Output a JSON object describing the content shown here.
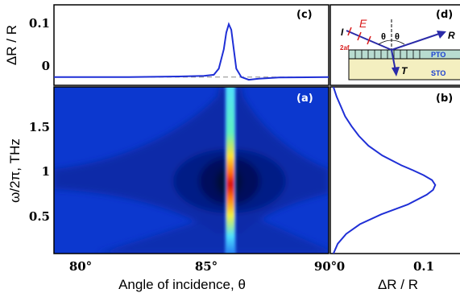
{
  "chart_data": [
    {
      "panel": "(c)",
      "type": "line",
      "ylabel": "ΔR / R",
      "yticks": [
        "0",
        "0.1"
      ],
      "ylim": [
        -0.015,
        0.13
      ],
      "xlim": [
        79,
        90
      ],
      "x": [
        79,
        82,
        84,
        85,
        85.4,
        85.6,
        85.8,
        85.9,
        86.0,
        86.1,
        86.2,
        86.3,
        86.5,
        86.8,
        87.2,
        88,
        90
      ],
      "y": [
        0,
        0,
        0.001,
        0.002,
        0.004,
        0.015,
        0.05,
        0.08,
        0.095,
        0.085,
        0.05,
        0.015,
        0.0,
        -0.005,
        -0.003,
        -0.001,
        0
      ],
      "series_color": "#1f2fd6",
      "grid": false
    },
    {
      "panel": "(a)",
      "type": "heatmap",
      "xlabel": "Angle of incidence, θ",
      "ylabel": "ω/2π, THz",
      "xticks": [
        "80°",
        "85°",
        "90°"
      ],
      "yticks": [
        "0.5",
        "1",
        "1.5"
      ],
      "xlim": [
        79,
        90
      ],
      "ylim": [
        0.2,
        1.9
      ],
      "colormap": "jet",
      "ridge_angle": 86.0,
      "peak_frequency": 0.92
    },
    {
      "panel": "(b)",
      "type": "line",
      "xlabel": "ΔR / R",
      "xticks": [
        "0",
        "0.1"
      ],
      "xlim": [
        -0.003,
        0.13
      ],
      "ylim": [
        0.2,
        1.9
      ],
      "freq": [
        0.2,
        0.3,
        0.4,
        0.5,
        0.6,
        0.7,
        0.8,
        0.85,
        0.9,
        0.95,
        1.0,
        1.05,
        1.1,
        1.2,
        1.3,
        1.4,
        1.5,
        1.6,
        1.7,
        1.8,
        1.9
      ],
      "dR": [
        0.0,
        0.004,
        0.012,
        0.025,
        0.045,
        0.07,
        0.088,
        0.094,
        0.096,
        0.093,
        0.085,
        0.075,
        0.064,
        0.046,
        0.033,
        0.024,
        0.017,
        0.011,
        0.007,
        0.003,
        0.0
      ],
      "series_color": "#1f2fd6"
    }
  ],
  "panel_labels": {
    "a": "(a)",
    "b": "(b)",
    "c": "(c)",
    "d": "(d)"
  },
  "schematic": {
    "incident": "I",
    "field": "E",
    "reflected": "R",
    "transmitted": "T",
    "angle": "θ",
    "grating_period": "2af",
    "film": "PTO",
    "substrate": "STO",
    "colors": {
      "incident": "#d81a1a",
      "beam": "#2a2aa8",
      "film": "#b8dcd0",
      "substrate": "#f4efc0",
      "film_label": "#1a3fd0"
    }
  }
}
